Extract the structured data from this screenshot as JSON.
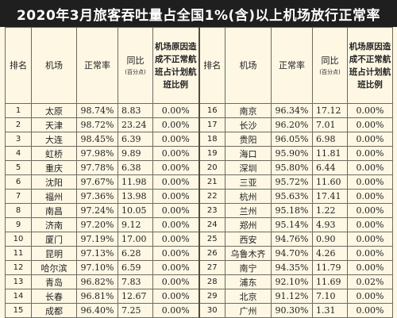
{
  "title": "2020年3月旅客吞吐量占全国1%(含)以上机场放行正常率",
  "headers": {
    "rank": "排名",
    "airport": "机场",
    "on_time": "正常率",
    "yoy": "同比",
    "yoy_unit": "(百分点)",
    "reason": "机场原因造成不正常航班占计划航班比例"
  },
  "rows": [
    {
      "rank": "1",
      "airport": "太原",
      "rate": "98.74%",
      "yoy": "8.83",
      "reason": "0.00%"
    },
    {
      "rank": "2",
      "airport": "天津",
      "rate": "98.72%",
      "yoy": "23.24",
      "reason": "0.00%"
    },
    {
      "rank": "3",
      "airport": "大连",
      "rate": "98.45%",
      "yoy": "6.39",
      "reason": "0.00%"
    },
    {
      "rank": "4",
      "airport": "虹桥",
      "rate": "97.98%",
      "yoy": "9.89",
      "reason": "0.00%"
    },
    {
      "rank": "5",
      "airport": "重庆",
      "rate": "97.78%",
      "yoy": "6.38",
      "reason": "0.00%"
    },
    {
      "rank": "6",
      "airport": "沈阳",
      "rate": "97.67%",
      "yoy": "11.98",
      "reason": "0.00%"
    },
    {
      "rank": "7",
      "airport": "福州",
      "rate": "97.36%",
      "yoy": "13.98",
      "reason": "0.00%"
    },
    {
      "rank": "8",
      "airport": "南昌",
      "rate": "97.24%",
      "yoy": "10.05",
      "reason": "0.00%"
    },
    {
      "rank": "9",
      "airport": "济南",
      "rate": "97.20%",
      "yoy": "9.12",
      "reason": "0.00%"
    },
    {
      "rank": "10",
      "airport": "厦门",
      "rate": "97.19%",
      "yoy": "17.00",
      "reason": "0.00%"
    },
    {
      "rank": "11",
      "airport": "昆明",
      "rate": "97.13%",
      "yoy": "6.28",
      "reason": "0.00%"
    },
    {
      "rank": "12",
      "airport": "哈尔滨",
      "rate": "97.10%",
      "yoy": "6.59",
      "reason": "0.00%"
    },
    {
      "rank": "13",
      "airport": "青岛",
      "rate": "96.82%",
      "yoy": "7.83",
      "reason": "0.00%"
    },
    {
      "rank": "14",
      "airport": "长春",
      "rate": "96.81%",
      "yoy": "12.67",
      "reason": "0.00%"
    },
    {
      "rank": "15",
      "airport": "成都",
      "rate": "96.40%",
      "yoy": "7.25",
      "reason": "0.00%"
    },
    {
      "rank": "16",
      "airport": "南京",
      "rate": "96.34%",
      "yoy": "17.12",
      "reason": "0.00%"
    },
    {
      "rank": "17",
      "airport": "长沙",
      "rate": "96.20%",
      "yoy": "7.01",
      "reason": "0.00%"
    },
    {
      "rank": "18",
      "airport": "贵阳",
      "rate": "96.05%",
      "yoy": "6.98",
      "reason": "0.00%"
    },
    {
      "rank": "19",
      "airport": "海口",
      "rate": "95.90%",
      "yoy": "11.81",
      "reason": "0.00%"
    },
    {
      "rank": "20",
      "airport": "深圳",
      "rate": "95.80%",
      "yoy": "6.44",
      "reason": "0.00%"
    },
    {
      "rank": "21",
      "airport": "三亚",
      "rate": "95.72%",
      "yoy": "11.60",
      "reason": "0.00%"
    },
    {
      "rank": "22",
      "airport": "杭州",
      "rate": "95.63%",
      "yoy": "17.41",
      "reason": "0.00%"
    },
    {
      "rank": "23",
      "airport": "兰州",
      "rate": "95.18%",
      "yoy": "1.22",
      "reason": "0.00%"
    },
    {
      "rank": "24",
      "airport": "郑州",
      "rate": "95.14%",
      "yoy": "4.93",
      "reason": "0.00%"
    },
    {
      "rank": "25",
      "airport": "西安",
      "rate": "94.76%",
      "yoy": "0.90",
      "reason": "0.00%"
    },
    {
      "rank": "26",
      "airport": "乌鲁木齐",
      "rate": "94.70%",
      "yoy": "4.26",
      "reason": "0.00%"
    },
    {
      "rank": "27",
      "airport": "南宁",
      "rate": "94.35%",
      "yoy": "11.79",
      "reason": "0.00%"
    },
    {
      "rank": "28",
      "airport": "浦东",
      "rate": "92.10%",
      "yoy": "11.69",
      "reason": "0.02%"
    },
    {
      "rank": "29",
      "airport": "北京",
      "rate": "91.12%",
      "yoy": "7.10",
      "reason": "0.00%"
    },
    {
      "rank": "30",
      "airport": "广州",
      "rate": "90.30%",
      "yoy": "1.31",
      "reason": "0.00%"
    }
  ]
}
